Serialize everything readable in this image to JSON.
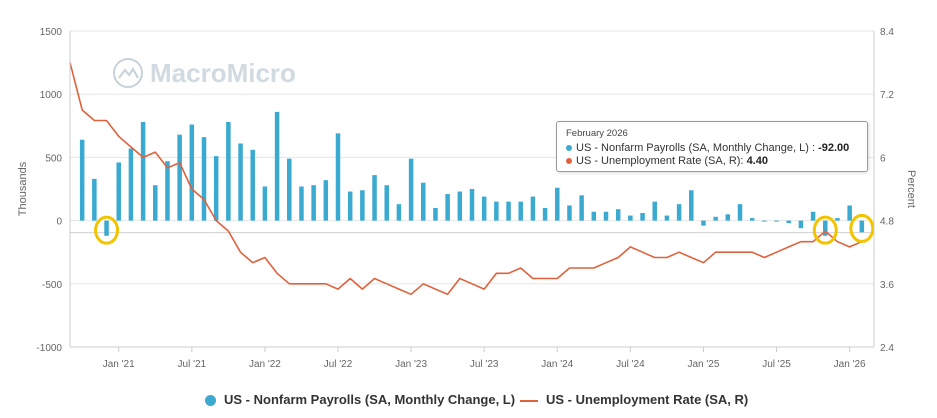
{
  "watermark": "MacroMicro",
  "colors": {
    "payrolls": "#3aaad1",
    "unemployment": "#e0623d",
    "highlight": "#f2c400",
    "grid": "#e6e6e6"
  },
  "tooltip": {
    "date": "February 2026",
    "row1_label": "US - Nonfarm Payrolls (SA, Monthly Change, L) : ",
    "row1_value": "-92.00",
    "row2_label": "US - Unemployment Rate (SA, R): ",
    "row2_value": "4.40"
  },
  "legend": {
    "payrolls": "US - Nonfarm Payrolls (SA, Monthly Change, L)",
    "unemployment": "US - Unemployment Rate (SA, R)"
  },
  "chart_data": {
    "type": "bar+line",
    "y_left": {
      "label": "Thousands",
      "min": -1000,
      "max": 1500,
      "ticks": [
        "1500",
        "1000",
        "500",
        "0",
        "-500",
        "-1000"
      ]
    },
    "y_right": {
      "label": "Percent",
      "min": 2.4,
      "max": 8.4,
      "ticks": [
        "8.4",
        "7.2",
        "6",
        "4.8",
        "3.6",
        "2.4"
      ]
    },
    "x_ticks": [
      "Jan '21",
      "Jul '21",
      "Jan '22",
      "Jul '22",
      "Jan '23",
      "Jul '23",
      "Jan '24",
      "Jul '24",
      "Jan '25",
      "Jul '25",
      "Jan '26"
    ],
    "x_range": [
      "2020-09",
      "2026-03"
    ],
    "series": [
      {
        "name": "US - Nonfarm Payrolls (SA, Monthly Change, L)",
        "axis": "left",
        "x": [
          "2020-10",
          "2020-11",
          "2020-12",
          "2021-01",
          "2021-02",
          "2021-03",
          "2021-04",
          "2021-05",
          "2021-06",
          "2021-07",
          "2021-08",
          "2021-09",
          "2021-10",
          "2021-11",
          "2021-12",
          "2022-01",
          "2022-02",
          "2022-03",
          "2022-04",
          "2022-05",
          "2022-06",
          "2022-07",
          "2022-08",
          "2022-09",
          "2022-10",
          "2022-11",
          "2022-12",
          "2023-01",
          "2023-02",
          "2023-03",
          "2023-04",
          "2023-05",
          "2023-06",
          "2023-07",
          "2023-08",
          "2023-09",
          "2023-10",
          "2023-11",
          "2023-12",
          "2024-01",
          "2024-02",
          "2024-03",
          "2024-04",
          "2024-05",
          "2024-06",
          "2024-07",
          "2024-08",
          "2024-09",
          "2024-10",
          "2024-11",
          "2024-12",
          "2025-01",
          "2025-02",
          "2025-03",
          "2025-04",
          "2025-05",
          "2025-06",
          "2025-07",
          "2025-08",
          "2025-09",
          "2025-10",
          "2025-11",
          "2025-12",
          "2026-01",
          "2026-02"
        ],
        "values": [
          640,
          330,
          -120,
          460,
          570,
          780,
          280,
          470,
          680,
          760,
          660,
          510,
          780,
          610,
          560,
          270,
          860,
          490,
          270,
          280,
          320,
          690,
          230,
          240,
          360,
          280,
          130,
          490,
          300,
          100,
          210,
          230,
          250,
          190,
          150,
          150,
          150,
          190,
          100,
          260,
          120,
          200,
          70,
          70,
          90,
          40,
          60,
          150,
          40,
          130,
          240,
          -40,
          30,
          50,
          130,
          20,
          0,
          0,
          -20,
          -60,
          70,
          -120,
          20,
          120,
          -92
        ]
      },
      {
        "name": "US - Unemployment Rate (SA, R)",
        "axis": "right",
        "x": [
          "2020-09",
          "2020-10",
          "2020-11",
          "2020-12",
          "2021-01",
          "2021-02",
          "2021-03",
          "2021-04",
          "2021-05",
          "2021-06",
          "2021-07",
          "2021-08",
          "2021-09",
          "2021-10",
          "2021-11",
          "2021-12",
          "2022-01",
          "2022-02",
          "2022-03",
          "2022-04",
          "2022-05",
          "2022-06",
          "2022-07",
          "2022-08",
          "2022-09",
          "2022-10",
          "2022-11",
          "2022-12",
          "2023-01",
          "2023-02",
          "2023-03",
          "2023-04",
          "2023-05",
          "2023-06",
          "2023-07",
          "2023-08",
          "2023-09",
          "2023-10",
          "2023-11",
          "2023-12",
          "2024-01",
          "2024-02",
          "2024-03",
          "2024-04",
          "2024-05",
          "2024-06",
          "2024-07",
          "2024-08",
          "2024-09",
          "2024-10",
          "2024-11",
          "2024-12",
          "2025-01",
          "2025-02",
          "2025-03",
          "2025-04",
          "2025-05",
          "2025-06",
          "2025-07",
          "2025-08",
          "2025-09",
          "2025-10",
          "2025-11",
          "2025-12",
          "2026-01",
          "2026-02"
        ],
        "values": [
          7.8,
          6.9,
          6.7,
          6.7,
          6.4,
          6.2,
          6.0,
          6.1,
          5.8,
          5.9,
          5.4,
          5.2,
          4.8,
          4.6,
          4.2,
          4.0,
          4.1,
          3.8,
          3.6,
          3.6,
          3.6,
          3.6,
          3.5,
          3.7,
          3.5,
          3.7,
          3.6,
          3.5,
          3.4,
          3.6,
          3.5,
          3.4,
          3.7,
          3.6,
          3.5,
          3.8,
          3.8,
          3.9,
          3.7,
          3.7,
          3.7,
          3.9,
          3.9,
          3.9,
          4.0,
          4.1,
          4.3,
          4.2,
          4.1,
          4.1,
          4.2,
          4.1,
          4.0,
          4.2,
          4.2,
          4.2,
          4.2,
          4.1,
          4.2,
          4.3,
          4.4,
          4.4,
          4.6,
          4.4,
          4.3,
          4.4
        ]
      }
    ],
    "annotations": [
      {
        "type": "highlight-circle",
        "target": "2020-12"
      },
      {
        "type": "highlight-circle",
        "target": "2025-11"
      },
      {
        "type": "highlight-circle",
        "target": "2026-02"
      }
    ]
  }
}
